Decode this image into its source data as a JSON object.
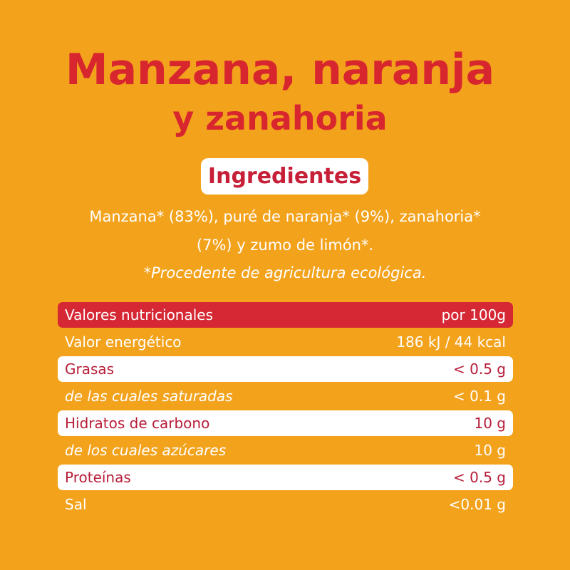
{
  "title": {
    "line1": "Manzana, naranja",
    "line2": "y zanahoria"
  },
  "ingredients": {
    "heading": "Ingredientes",
    "line1": "Manzana* (83%), puré de naranja* (9%), zanahoria*",
    "line2": "(7%) y zumo de limón*.",
    "note": "*Procedente de agricultura ecológica."
  },
  "nutrition": {
    "header": {
      "label": "Valores nutricionales",
      "value": "por 100g"
    },
    "rows": [
      {
        "label": "Valor energético",
        "value": "186 kJ / 44 kcal"
      },
      {
        "label": "Grasas",
        "value": "< 0.5 g"
      },
      {
        "label": "de las cuales saturadas",
        "value": "< 0.1 g"
      },
      {
        "label": "Hidratos de carbono",
        "value": "10 g"
      },
      {
        "label": "de los cuales azúcares",
        "value": "10 g"
      },
      {
        "label": "Proteínas",
        "value": "< 0.5 g"
      },
      {
        "label": "Sal",
        "value": "<0.01 g"
      }
    ]
  },
  "colors": {
    "background": "#f3a21c",
    "red": "#d8262f",
    "white": "#ffffff"
  }
}
